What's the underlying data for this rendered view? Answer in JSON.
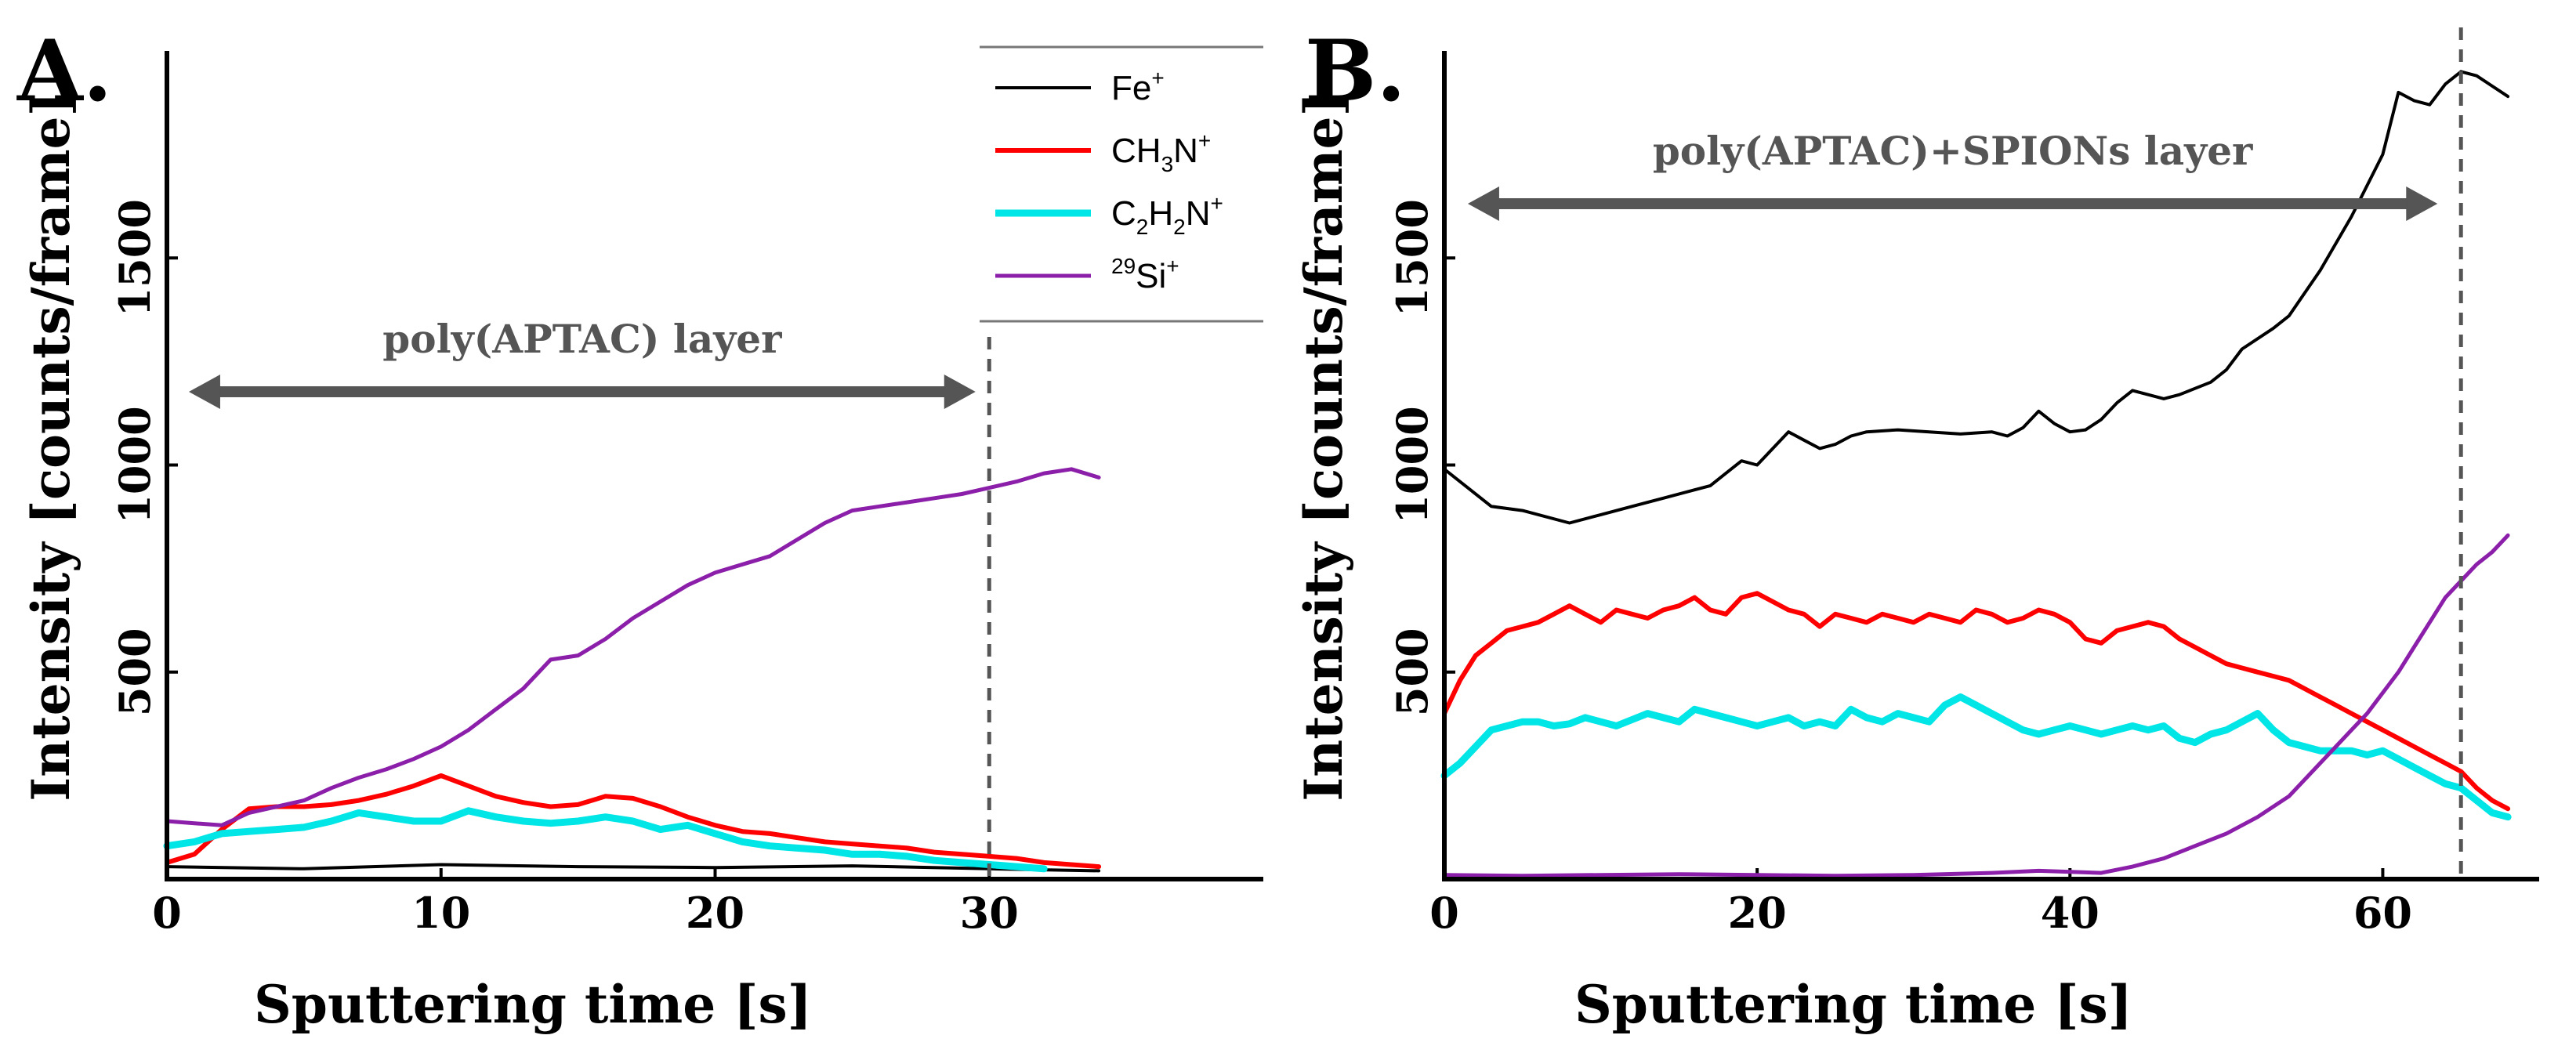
{
  "chart_data": [
    {
      "type": "line",
      "panel_label": "A.",
      "xlabel": "Sputtering time [s]",
      "ylabel": "Intensity [counts/frame]",
      "xlim": [
        0,
        40
      ],
      "ylim": [
        0,
        2000
      ],
      "xticks": [
        "0",
        "10",
        "20",
        "30"
      ],
      "yticks": [
        "500",
        "1000",
        "1500"
      ],
      "annotation": {
        "text": "poly(APTAC) layer",
        "x_start": 0.8,
        "x_end": 29.5
      },
      "vline_x": 30,
      "legend": [
        {
          "label": "Fe⁺",
          "base": "Fe",
          "sub": "",
          "sup": "+",
          "pre_sup": "",
          "color": "#000000"
        },
        {
          "label": "CH₃N⁺",
          "base": "CH",
          "sub": "3",
          "base2": "N",
          "sup": "+",
          "pre_sup": "",
          "color": "#ff0000"
        },
        {
          "label": "C₂H₂N⁺",
          "base": "C",
          "sub": "2",
          "base2": "H",
          "sub2": "2",
          "base3": "N",
          "sup": "+",
          "pre_sup": "",
          "color": "#00e5e5"
        },
        {
          "label": "²⁹Si⁺",
          "base": "Si",
          "sub": "",
          "sup": "+",
          "pre_sup": "29",
          "color": "#8b1fa9"
        }
      ],
      "series": [
        {
          "name": "Fe⁺",
          "color": "#000000",
          "x": [
            0,
            5,
            10,
            15,
            20,
            25,
            30,
            34
          ],
          "y": [
            30,
            25,
            35,
            30,
            28,
            32,
            25,
            20
          ]
        },
        {
          "name": "CH₃N⁺",
          "color": "#ff0000",
          "x": [
            0,
            1,
            2,
            3,
            4,
            5,
            6,
            7,
            8,
            9,
            10,
            11,
            12,
            13,
            14,
            15,
            16,
            17,
            18,
            19,
            20,
            21,
            22,
            23,
            24,
            25,
            26,
            27,
            28,
            29,
            30,
            31,
            32,
            33,
            34
          ],
          "y": [
            40,
            60,
            120,
            170,
            175,
            175,
            180,
            190,
            205,
            225,
            250,
            225,
            200,
            185,
            175,
            180,
            200,
            195,
            175,
            150,
            130,
            115,
            110,
            100,
            90,
            85,
            80,
            75,
            65,
            60,
            55,
            50,
            40,
            35,
            30
          ]
        },
        {
          "name": "C₂H₂N⁺",
          "color": "#00e5e5",
          "x": [
            0,
            1,
            2,
            3,
            4,
            5,
            6,
            7,
            8,
            9,
            10,
            11,
            12,
            13,
            14,
            15,
            16,
            17,
            18,
            19,
            20,
            21,
            22,
            23,
            24,
            25,
            26,
            27,
            28,
            29,
            30,
            31,
            32
          ],
          "y": [
            80,
            90,
            110,
            115,
            120,
            125,
            140,
            160,
            150,
            140,
            140,
            165,
            150,
            140,
            135,
            140,
            150,
            140,
            120,
            130,
            110,
            90,
            80,
            75,
            70,
            60,
            60,
            55,
            45,
            40,
            35,
            30,
            25
          ]
        },
        {
          "name": "²⁹Si⁺",
          "color": "#8b1fa9",
          "x": [
            0,
            1,
            2,
            3,
            4,
            5,
            6,
            7,
            8,
            9,
            10,
            11,
            12,
            13,
            14,
            15,
            16,
            17,
            18,
            19,
            20,
            21,
            22,
            23,
            24,
            25,
            26,
            27,
            28,
            29,
            30,
            31,
            32,
            33,
            34
          ],
          "y": [
            140,
            135,
            130,
            160,
            175,
            190,
            220,
            245,
            265,
            290,
            320,
            360,
            410,
            460,
            530,
            540,
            580,
            630,
            670,
            710,
            740,
            760,
            780,
            820,
            860,
            890,
            900,
            910,
            920,
            930,
            945,
            960,
            980,
            990,
            970
          ]
        }
      ]
    },
    {
      "type": "line",
      "panel_label": "B.",
      "xlabel": "Sputtering time [s]",
      "ylabel": "Intensity [counts/frame]",
      "xlim": [
        0,
        70
      ],
      "ylim": [
        0,
        2000
      ],
      "xticks": [
        "0",
        "20",
        "40",
        "60"
      ],
      "yticks": [
        "500",
        "1000",
        "1500"
      ],
      "annotation": {
        "text": "poly(APTAC)+SPIONs layer",
        "x_start": 1.5,
        "x_end": 63.5
      },
      "vline_x": 65,
      "series": [
        {
          "name": "Fe⁺",
          "color": "#000000",
          "x": [
            0,
            3,
            5,
            8,
            10,
            12,
            14,
            16,
            17,
            18,
            19,
            20,
            21,
            22,
            23,
            24,
            25,
            26,
            27,
            29,
            31,
            33,
            35,
            36,
            37,
            38,
            39,
            40,
            41,
            42,
            43,
            44,
            45,
            46,
            47,
            49,
            50,
            51,
            53,
            54,
            56,
            58,
            60,
            61,
            62,
            63,
            64,
            65,
            66,
            68
          ],
          "y": [
            990,
            900,
            890,
            860,
            880,
            900,
            920,
            940,
            950,
            980,
            1010,
            1000,
            1040,
            1080,
            1060,
            1040,
            1050,
            1070,
            1080,
            1085,
            1080,
            1075,
            1080,
            1070,
            1090,
            1130,
            1100,
            1080,
            1085,
            1110,
            1150,
            1180,
            1170,
            1160,
            1170,
            1200,
            1230,
            1280,
            1330,
            1360,
            1470,
            1600,
            1750,
            1900,
            1880,
            1870,
            1920,
            1950,
            1940,
            1890
          ]
        },
        {
          "name": "CH₃N⁺",
          "color": "#ff0000",
          "x": [
            0,
            1,
            2,
            3,
            4,
            5,
            6,
            7,
            8,
            9,
            10,
            11,
            12,
            13,
            14,
            15,
            16,
            17,
            18,
            19,
            20,
            21,
            22,
            23,
            24,
            25,
            26,
            27,
            28,
            29,
            30,
            31,
            32,
            33,
            34,
            35,
            36,
            37,
            38,
            39,
            40,
            41,
            42,
            43,
            44,
            45,
            46,
            47,
            48,
            49,
            50,
            51,
            52,
            53,
            54,
            55,
            56,
            57,
            58,
            59,
            60,
            61,
            62,
            63,
            64,
            65,
            66,
            67,
            68
          ],
          "y": [
            400,
            480,
            540,
            570,
            600,
            610,
            620,
            640,
            660,
            640,
            620,
            650,
            640,
            630,
            650,
            660,
            680,
            650,
            640,
            680,
            690,
            670,
            650,
            640,
            610,
            640,
            630,
            620,
            640,
            630,
            620,
            640,
            630,
            620,
            650,
            640,
            620,
            630,
            650,
            640,
            620,
            580,
            570,
            600,
            610,
            620,
            610,
            580,
            560,
            540,
            520,
            510,
            500,
            490,
            480,
            460,
            440,
            420,
            400,
            380,
            360,
            340,
            320,
            300,
            280,
            260,
            220,
            190,
            170
          ]
        },
        {
          "name": "C₂H₂N⁺",
          "color": "#00e5e5",
          "x": [
            0,
            1,
            2,
            3,
            4,
            5,
            6,
            7,
            8,
            9,
            10,
            11,
            12,
            13,
            14,
            15,
            16,
            17,
            18,
            19,
            20,
            21,
            22,
            23,
            24,
            25,
            26,
            27,
            28,
            29,
            30,
            31,
            32,
            33,
            34,
            35,
            36,
            37,
            38,
            39,
            40,
            41,
            42,
            43,
            44,
            45,
            46,
            47,
            48,
            49,
            50,
            51,
            52,
            53,
            54,
            55,
            56,
            57,
            58,
            59,
            60,
            61,
            62,
            63,
            64,
            65,
            66,
            67,
            68
          ],
          "y": [
            250,
            280,
            320,
            360,
            370,
            380,
            380,
            370,
            375,
            390,
            380,
            370,
            385,
            400,
            390,
            380,
            410,
            400,
            390,
            380,
            370,
            380,
            390,
            370,
            380,
            370,
            410,
            390,
            380,
            400,
            390,
            380,
            420,
            440,
            420,
            400,
            380,
            360,
            350,
            360,
            370,
            360,
            350,
            360,
            370,
            360,
            370,
            340,
            330,
            350,
            360,
            380,
            400,
            360,
            330,
            320,
            310,
            310,
            310,
            300,
            310,
            290,
            270,
            250,
            230,
            220,
            190,
            160,
            150
          ]
        },
        {
          "name": "²⁹Si⁺",
          "color": "#8b1fa9",
          "x": [
            0,
            5,
            10,
            15,
            20,
            25,
            30,
            35,
            38,
            42,
            44,
            46,
            48,
            50,
            52,
            54,
            56,
            57,
            58,
            59,
            60,
            61,
            62,
            63,
            64,
            65,
            66,
            67,
            68
          ],
          "y": [
            10,
            8,
            10,
            12,
            10,
            8,
            10,
            15,
            20,
            15,
            30,
            50,
            80,
            110,
            150,
            200,
            280,
            320,
            360,
            400,
            450,
            500,
            560,
            620,
            680,
            720,
            760,
            790,
            830
          ]
        }
      ]
    }
  ]
}
